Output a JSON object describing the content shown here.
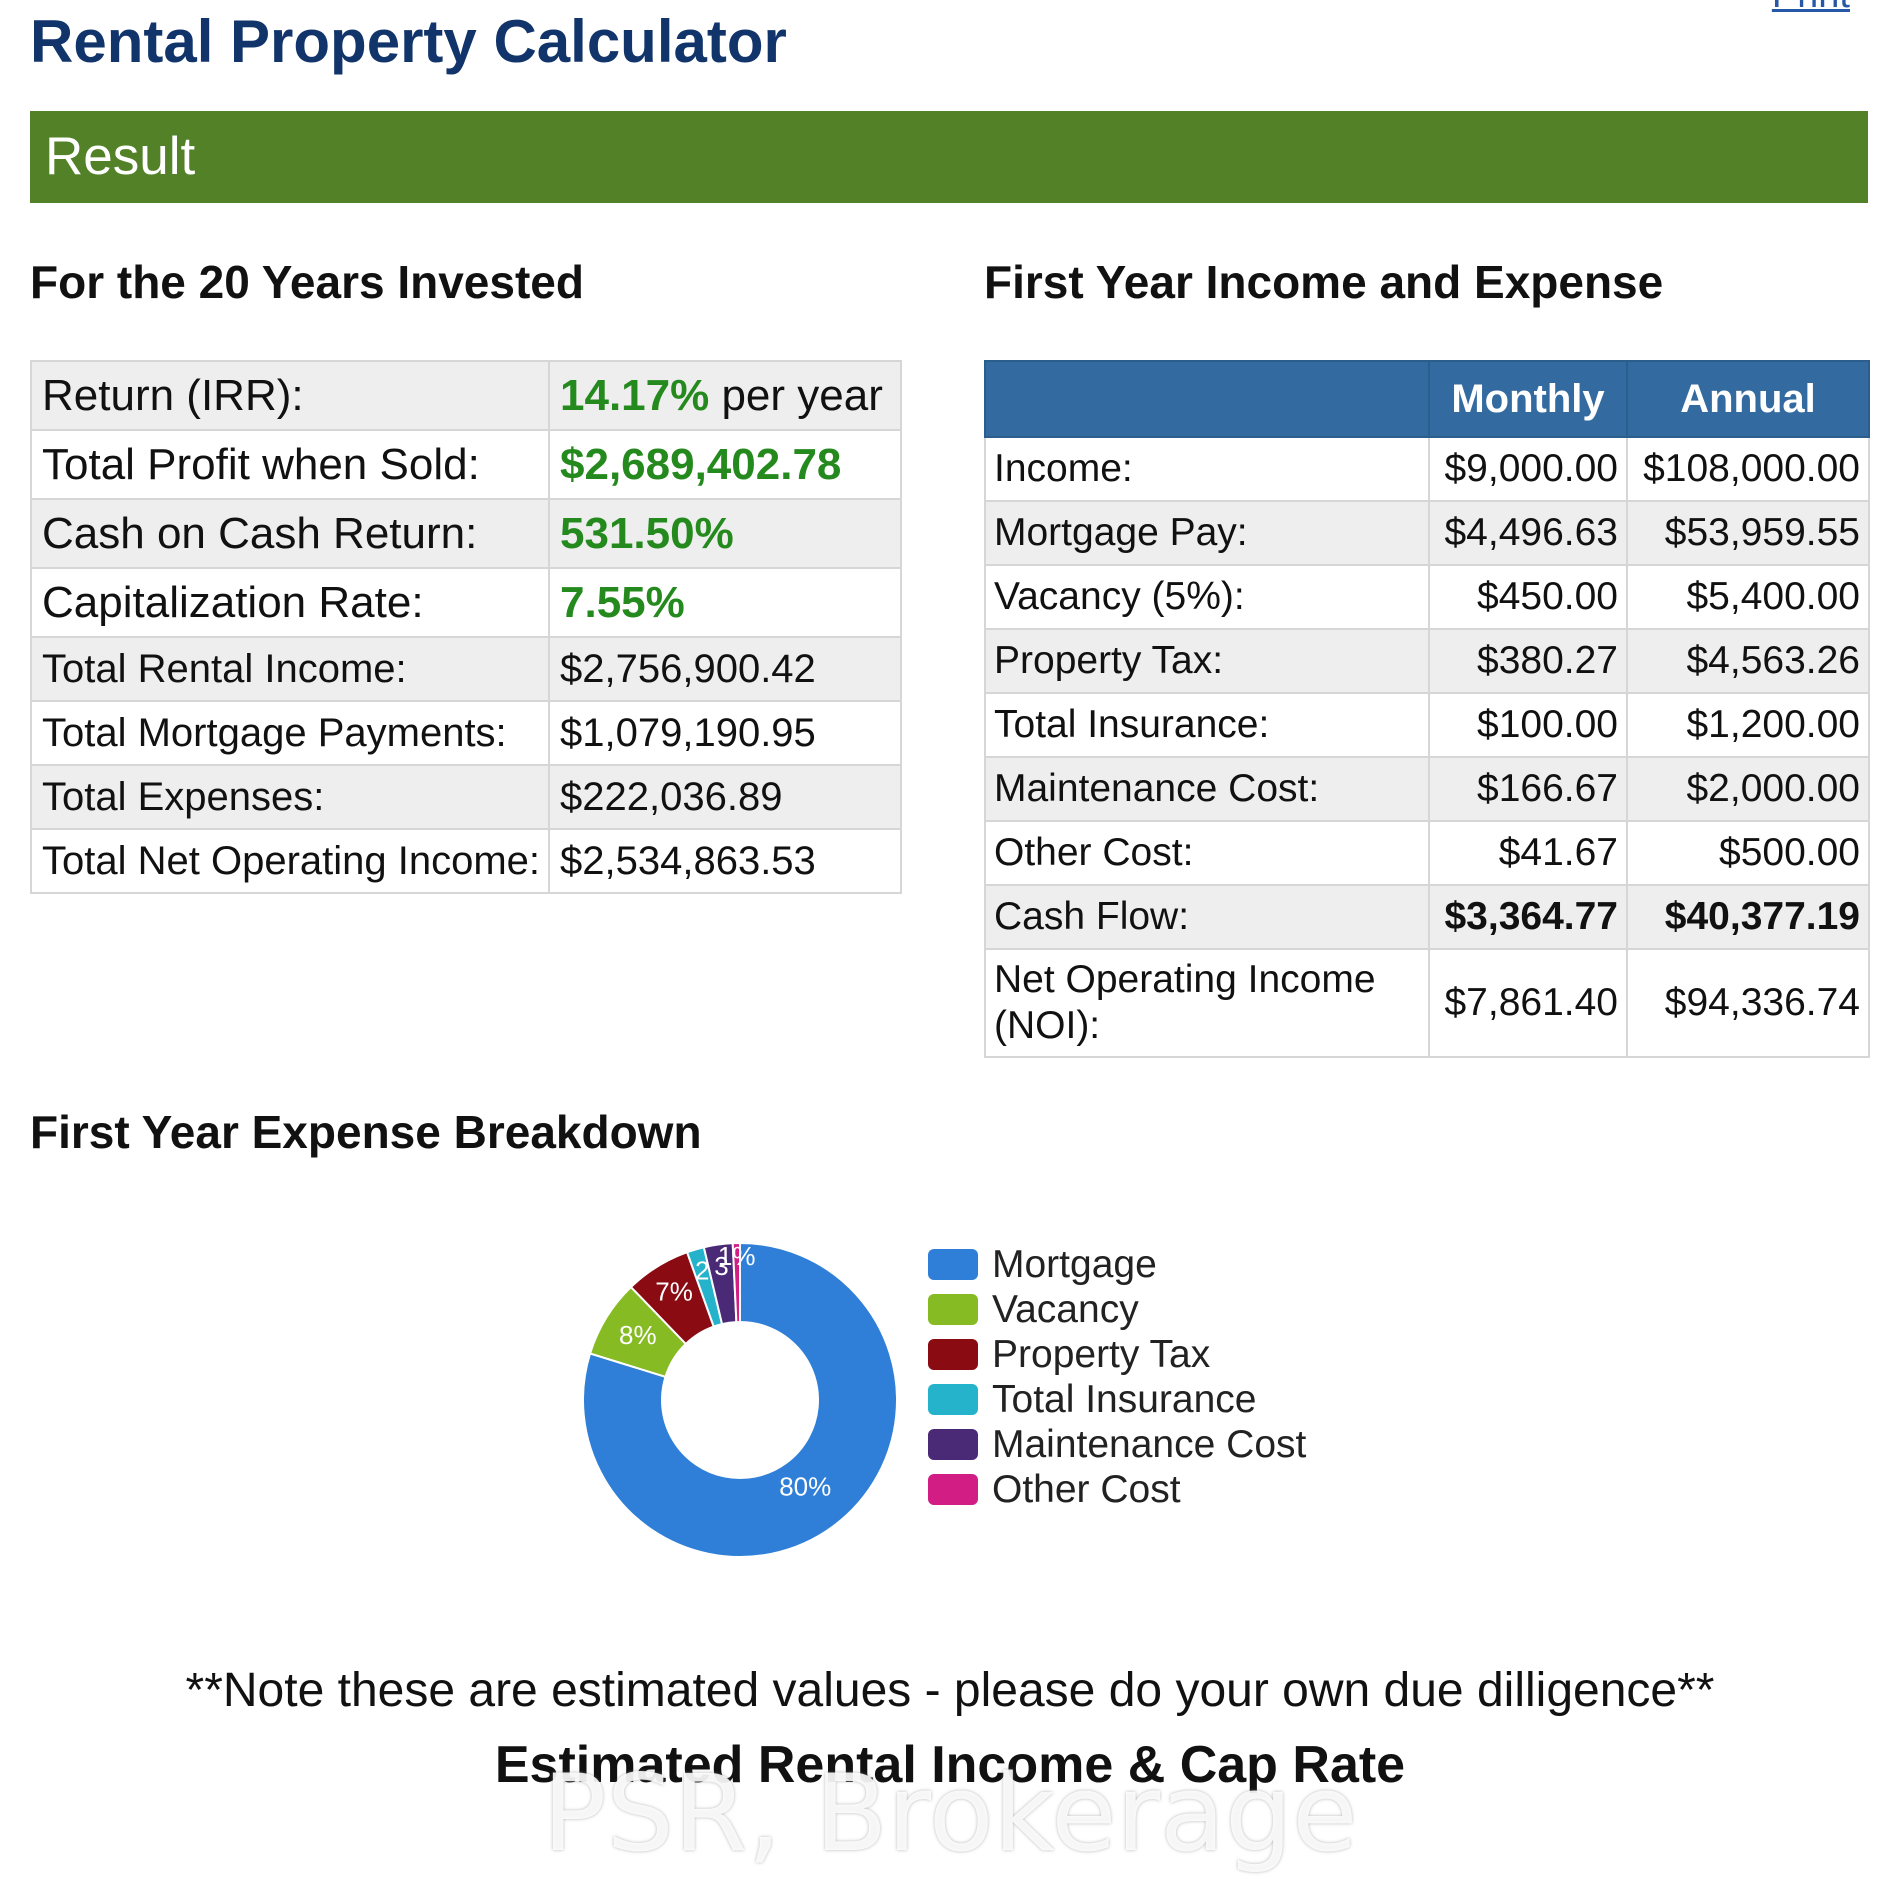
{
  "header": {
    "title": "Rental Property Calculator",
    "print_label": "Print"
  },
  "result_bar": {
    "label": "Result"
  },
  "summary": {
    "heading": "For the 20 Years Invested",
    "rows": [
      {
        "label": "Return (IRR):",
        "value": "14.17%",
        "suffix": " per year"
      },
      {
        "label": "Total Profit when Sold:",
        "value": "$2,689,402.78"
      },
      {
        "label": "Cash on Cash Return:",
        "value": "531.50%"
      },
      {
        "label": "Capitalization Rate:",
        "value": "7.55%"
      },
      {
        "label": "Total Rental Income:",
        "value": "$2,756,900.42"
      },
      {
        "label": "Total Mortgage Payments:",
        "value": "$1,079,190.95"
      },
      {
        "label": "Total Expenses:",
        "value": "$222,036.89"
      },
      {
        "label": "Total Net Operating Income:",
        "value": "$2,534,863.53"
      }
    ]
  },
  "income_expense": {
    "heading": "First Year Income and Expense",
    "columns": [
      "",
      "Monthly",
      "Annual"
    ],
    "rows": [
      {
        "label": "Income:",
        "monthly": "$9,000.00",
        "annual": "$108,000.00"
      },
      {
        "label": "Mortgage Pay:",
        "monthly": "$4,496.63",
        "annual": "$53,959.55"
      },
      {
        "label": "Vacancy (5%):",
        "monthly": "$450.00",
        "annual": "$5,400.00"
      },
      {
        "label": "Property Tax:",
        "monthly": "$380.27",
        "annual": "$4,563.26"
      },
      {
        "label": "Total Insurance:",
        "monthly": "$100.00",
        "annual": "$1,200.00"
      },
      {
        "label": "Maintenance Cost:",
        "monthly": "$166.67",
        "annual": "$2,000.00"
      },
      {
        "label": "Other Cost:",
        "monthly": "$41.67",
        "annual": "$500.00"
      },
      {
        "label": "Cash Flow:",
        "monthly": "$3,364.77",
        "annual": "$40,377.19"
      },
      {
        "label": "Net Operating Income (NOI):",
        "monthly": "$7,861.40",
        "annual": "$94,336.74"
      }
    ]
  },
  "breakdown": {
    "heading": "First Year Expense Breakdown"
  },
  "chart_data": {
    "type": "pie",
    "title": "First Year Expense Breakdown",
    "categories": [
      "Mortgage",
      "Vacancy",
      "Property Tax",
      "Total Insurance",
      "Maintenance Cost",
      "Other Cost"
    ],
    "values": [
      53959.55,
      5400.0,
      4563.26,
      1200.0,
      2000.0,
      500.0
    ],
    "labels": [
      "80%",
      "8%",
      "7%",
      "2",
      "3",
      "1%"
    ],
    "colors": [
      "#2f7fd8",
      "#86bb24",
      "#8a0b12",
      "#25b2cb",
      "#4a2a77",
      "#d11d84"
    ],
    "legend": "right"
  },
  "footer": {
    "note": "**Note these are estimated values - please do your own due dilligence**",
    "subtitle": "Estimated Rental Income & Cap Rate",
    "watermark": "PSR, Brokerage"
  }
}
